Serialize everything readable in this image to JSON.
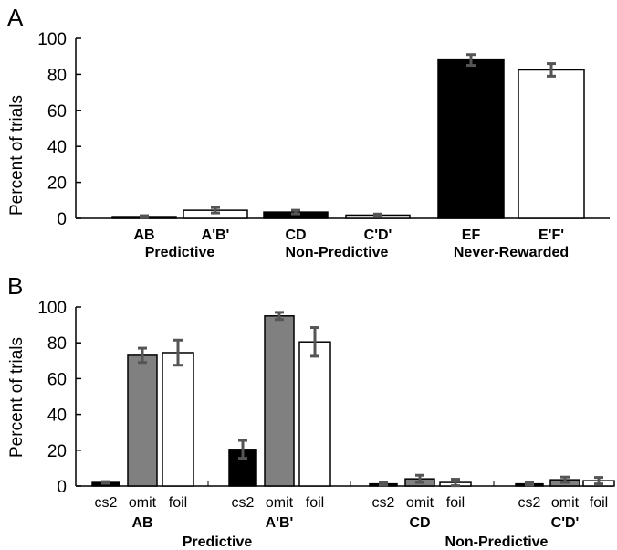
{
  "chart_data": [
    {
      "panel": "A",
      "type": "bar",
      "ylabel": "Percent of trials",
      "ylim": [
        0,
        100
      ],
      "yticks": [
        "0",
        "20",
        "40",
        "60",
        "80",
        "100"
      ],
      "categories": [
        "AB",
        "A'B'",
        "CD",
        "C'D'",
        "EF",
        "E'F'"
      ],
      "groups": [
        "Predictive",
        "Non-Predictive",
        "Never-Rewarded"
      ],
      "bars": [
        {
          "category": "AB",
          "group": "Predictive",
          "value": 1,
          "error": 0.5,
          "fill": "black"
        },
        {
          "category": "A'B'",
          "group": "Predictive",
          "value": 4.5,
          "error": 1.5,
          "fill": "white"
        },
        {
          "category": "CD",
          "group": "Non-Predictive",
          "value": 3.5,
          "error": 1,
          "fill": "black"
        },
        {
          "category": "C'D'",
          "group": "Non-Predictive",
          "value": 1.8,
          "error": 0.6,
          "fill": "white"
        },
        {
          "category": "EF",
          "group": "Never-Rewarded",
          "value": 88,
          "error": 3,
          "fill": "black"
        },
        {
          "category": "E'F'",
          "group": "Never-Rewarded",
          "value": 82.5,
          "error": 3.5,
          "fill": "white"
        }
      ]
    },
    {
      "panel": "B",
      "type": "bar",
      "ylabel": "Percent of trials",
      "ylim": [
        0,
        100
      ],
      "yticks": [
        "0",
        "20",
        "40",
        "60",
        "80",
        "100"
      ],
      "subcategories": [
        "cs2",
        "omit",
        "foil"
      ],
      "subcategory_colors": {
        "cs2": "#000000",
        "omit": "#808080",
        "foil": "#ffffff"
      },
      "groups": [
        "Predictive",
        "Non-Predictive"
      ],
      "clusters": [
        {
          "label": "AB",
          "group": "Predictive",
          "values": [
            2,
            73,
            74.5
          ],
          "errors": [
            0.5,
            4,
            7
          ]
        },
        {
          "label": "A'B'",
          "group": "Predictive",
          "values": [
            20.5,
            95,
            80.5
          ],
          "errors": [
            5,
            2,
            8
          ]
        },
        {
          "label": "CD",
          "group": "Non-Predictive",
          "values": [
            1.2,
            4,
            2
          ],
          "errors": [
            0.6,
            2,
            1.8
          ]
        },
        {
          "label": "C'D'",
          "group": "Non-Predictive",
          "values": [
            1.2,
            3.5,
            3
          ],
          "errors": [
            0.6,
            1.5,
            1.8
          ]
        }
      ]
    }
  ]
}
